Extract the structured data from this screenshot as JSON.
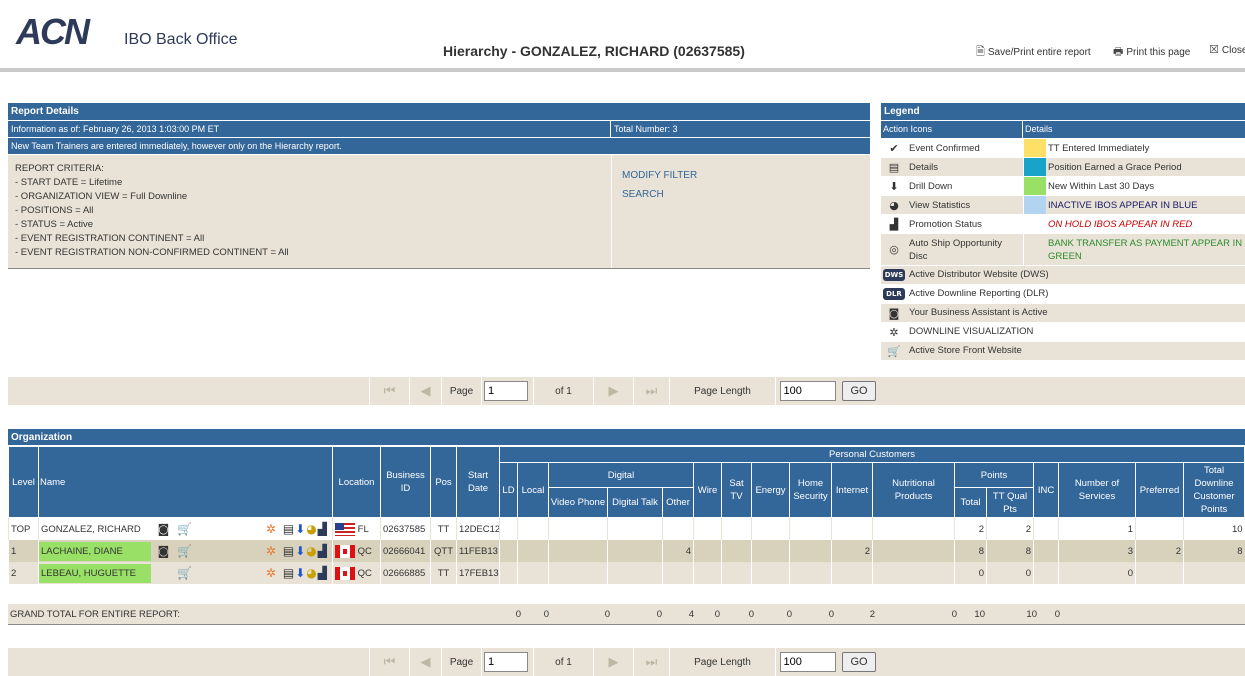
{
  "header": {
    "logo": "ACN",
    "logo_sub": "IBO Back Office",
    "title": "Hierarchy - GONZALEZ, RICHARD (02637585)",
    "save_print": "Save/Print entire report",
    "print_page": "Print this page",
    "close": "Close"
  },
  "report": {
    "heading": "Report Details",
    "info_as_of": "Information as of: February 26, 2013 1:03:00 PM ET",
    "total_number": "Total Number: 3",
    "notice": "New Team Trainers are entered immediately, however only on the Hierarchy report.",
    "criteria": [
      "REPORT CRITERIA:",
      "- START DATE = Lifetime",
      "- ORGANIZATION VIEW = Full Downline",
      "- POSITIONS = All",
      "- STATUS = Active",
      "- EVENT REGISTRATION CONTINENT = All",
      "- EVENT REGISTRATION NON-CONFIRMED CONTINENT = All"
    ],
    "modify_filter": "MODIFY FILTER",
    "search": "SEARCH"
  },
  "legend": {
    "heading": "Legend",
    "col_icons": "Action Icons",
    "col_details": "Details",
    "rows": [
      {
        "icon": "event-confirmed-icon",
        "glyph": "✔",
        "label": "Event Confirmed",
        "swatch": "#ffe066",
        "detail": "TT Entered Immediately",
        "detail_color": "#333"
      },
      {
        "icon": "details-icon",
        "glyph": "▤",
        "label": "Details",
        "swatch": "#1aa3c8",
        "detail": "Position Earned a Grace Period",
        "detail_color": "#333"
      },
      {
        "icon": "drill-down-icon",
        "glyph": "⬇",
        "label": "Drill Down",
        "swatch": "#99e066",
        "detail": "New Within Last 30 Days",
        "detail_color": "#333"
      },
      {
        "icon": "view-statistics-icon",
        "glyph": "◕",
        "label": "View Statistics",
        "swatch": "#b3d4f0",
        "detail": "INACTIVE IBOS APPEAR IN BLUE",
        "detail_color": "#1a1a66"
      },
      {
        "icon": "promotion-status-icon",
        "glyph": "▟",
        "label": "Promotion Status",
        "swatch": "",
        "detail": "ON HOLD IBOS APPEAR IN RED",
        "detail_color": "#cc0000"
      },
      {
        "icon": "auto-ship-icon",
        "glyph": "◎",
        "label": "Auto Ship Opportunity Disc",
        "swatch": "",
        "detail": "BANK TRANSFER AS PAYMENT APPEAR IN GREEN",
        "detail_color": "#2e8b2e"
      }
    ],
    "extras": [
      {
        "icon": "dws-icon",
        "glyph": "DWS",
        "label": "Active Distributor Website (DWS)"
      },
      {
        "icon": "dlr-icon",
        "glyph": "DLR",
        "label": "Active Downline Reporting (DLR)"
      },
      {
        "icon": "business-assistant-icon",
        "glyph": "◙",
        "label": "Your Business Assistant is Active"
      },
      {
        "icon": "downline-visualization-icon",
        "glyph": "✲",
        "label": "DOWNLINE VISUALIZATION"
      },
      {
        "icon": "store-front-icon",
        "glyph": "🛒",
        "label": "Active Store Front Website"
      }
    ]
  },
  "pager": {
    "page_label": "Page",
    "page_value": "1",
    "of_label": "of 1",
    "page_length_label": "Page Length",
    "page_length_value": "100",
    "go": "GO"
  },
  "org": {
    "heading": "Organization",
    "headers": {
      "level": "Level",
      "name": "Name",
      "location": "Location",
      "business_id": "Business ID",
      "pos": "Pos",
      "start_date": "Start Date",
      "personal_customers": "Personal Customers",
      "ld": "LD",
      "local": "Local",
      "digital": "Digital",
      "video_phone": "Video Phone",
      "digital_talk": "Digital Talk",
      "other": "Other",
      "wire": "Wire",
      "sat_tv": "Sat TV",
      "energy": "Energy",
      "home_security": "Home Security",
      "internet": "Internet",
      "nutritional_products": "Nutritional Products",
      "points": "Points",
      "total": "Total",
      "tt_qual_pts": "TT Qual Pts",
      "inc": "INC",
      "number_of_services": "Number of Services",
      "preferred": "Preferred",
      "total_downline": "Total Downline Customer Points"
    },
    "rows": [
      {
        "level": "TOP",
        "name": "GONZALEZ, RICHARD",
        "state": "FL",
        "flag": "us",
        "business_id": "02637585",
        "pos": "TT",
        "start": "12DEC12",
        "other": "",
        "internet": "",
        "total": "2",
        "ttqual": "2",
        "services": "1",
        "preferred": "",
        "downline": "10",
        "new": false
      },
      {
        "level": "1",
        "name": "LACHAINE, DIANE",
        "state": "QC",
        "flag": "ca",
        "business_id": "02666041",
        "pos": "QTT",
        "start": "11FEB13",
        "other": "4",
        "internet": "2",
        "total": "8",
        "ttqual": "8",
        "services": "3",
        "preferred": "2",
        "downline": "8",
        "new": true
      },
      {
        "level": "2",
        "name": "LEBEAU, HUGUETTE",
        "state": "QC",
        "flag": "ca",
        "business_id": "02666885",
        "pos": "TT",
        "start": "17FEB13",
        "other": "",
        "internet": "",
        "total": "0",
        "ttqual": "0",
        "services": "0",
        "preferred": "",
        "downline": "",
        "new": true
      }
    ],
    "grand_total_label": "GRAND TOTAL FOR ENTIRE REPORT:",
    "grand_totals": [
      "0",
      "0",
      "0",
      "0",
      "4",
      "0",
      "0",
      "0",
      "0",
      "2",
      "0",
      "10",
      "10",
      "0"
    ]
  },
  "colors": {
    "accent": "#336699",
    "tan": "#e8e3d6",
    "new_green": "#99e066"
  }
}
